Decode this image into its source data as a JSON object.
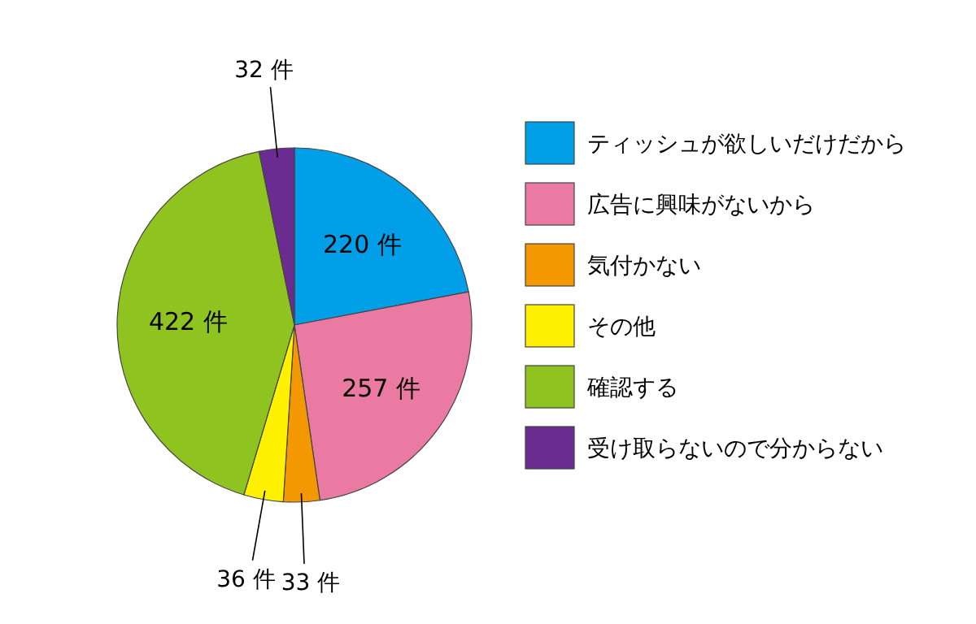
{
  "chart_data": {
    "type": "pie",
    "categories": [
      "ティッシュが欲しいだけだから",
      "広告に興味がないから",
      "気付かない",
      "その他",
      "確認する",
      "受け取らないので分からない"
    ],
    "values": [
      220,
      257,
      33,
      36,
      422,
      32
    ],
    "colors": [
      "#009fe8",
      "#ea7aa1",
      "#f39800",
      "#fff100",
      "#8fc31f",
      "#6a2c91"
    ],
    "value_labels": [
      "220 件",
      "257 件",
      "33 件",
      "36 件",
      "422 件",
      "32 件"
    ],
    "legend": "right"
  }
}
